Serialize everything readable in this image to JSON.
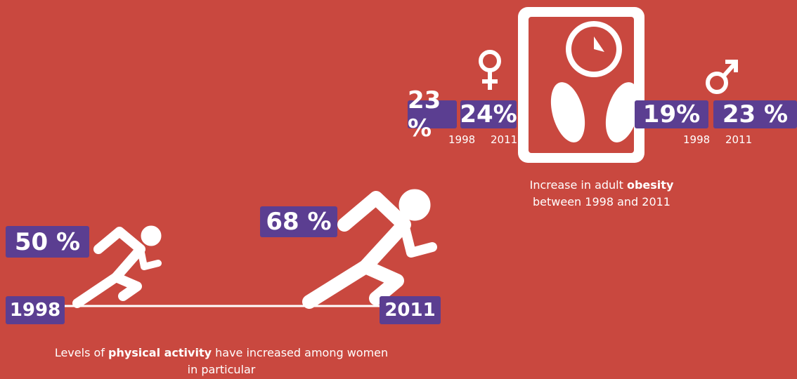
{
  "obesity": {
    "women": [
      {
        "value": "23 %",
        "year": "1998"
      },
      {
        "value": "24%",
        "year": "2011"
      }
    ],
    "men": [
      {
        "value": "19%",
        "year": "1998"
      },
      {
        "value": "23 %",
        "year": "2011"
      }
    ],
    "caption": [
      "Increase in adult ",
      "obesity",
      "between 1998 and 2011"
    ]
  },
  "activity": {
    "start": {
      "value": "50 %",
      "year": "1998"
    },
    "end": {
      "value": "68 %",
      "year": "2011"
    },
    "caption": [
      "Levels of ",
      "physical activity",
      " have increased among women",
      "in particular"
    ]
  }
}
